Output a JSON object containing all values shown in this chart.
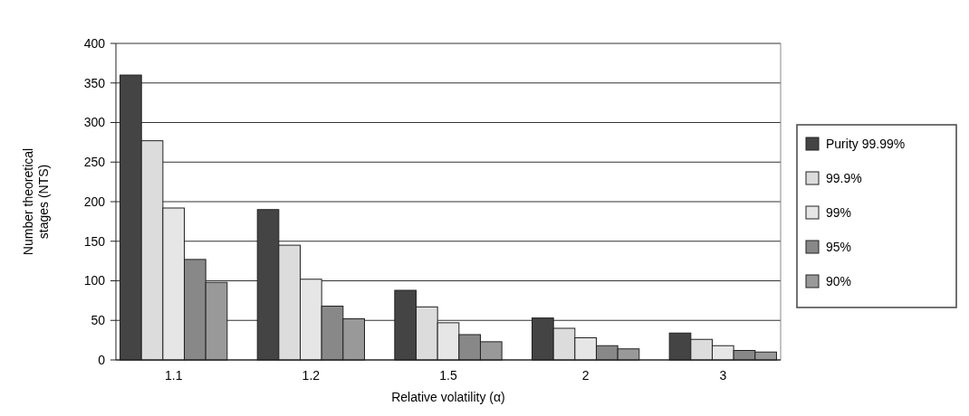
{
  "chart_data": {
    "type": "bar",
    "xlabel": "Relative volatility (α)",
    "ylabel": "Number theoretical stages (NTS)",
    "categories": [
      "1.1",
      "1.2",
      "1.5",
      "2",
      "3"
    ],
    "series": [
      {
        "name": "Purity 99.99%",
        "color": "#444444",
        "values": [
          360,
          190,
          88,
          53,
          34
        ]
      },
      {
        "name": "99.9%",
        "color": "#dcdcdc",
        "values": [
          277,
          145,
          67,
          40,
          26
        ]
      },
      {
        "name": "99%",
        "color": "#e6e6e6",
        "values": [
          192,
          102,
          47,
          28,
          18
        ]
      },
      {
        "name": "95%",
        "color": "#888888",
        "values": [
          127,
          68,
          32,
          18,
          12
        ]
      },
      {
        "name": "90%",
        "color": "#999999",
        "values": [
          98,
          52,
          23,
          14,
          10
        ]
      }
    ],
    "ylim": [
      0,
      400
    ],
    "yticks": [
      0,
      50,
      100,
      150,
      200,
      250,
      300,
      350,
      400
    ],
    "grid": "y",
    "legend": "right"
  }
}
